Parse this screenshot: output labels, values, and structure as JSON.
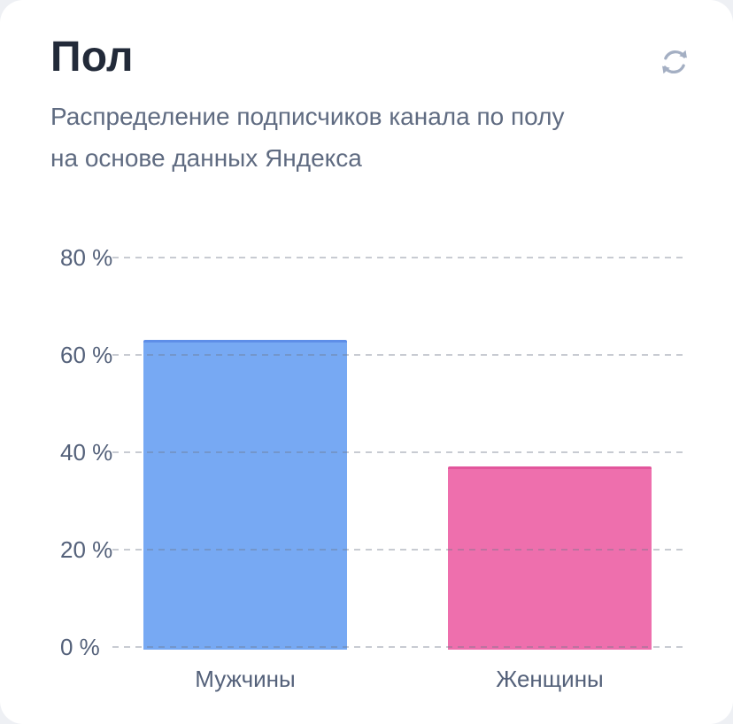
{
  "page": {
    "background": "#eef0f4"
  },
  "card": {
    "title": "Пол",
    "subtitle_lines": [
      "Распределение подписчиков канала по полу",
      "на основе данных Яндекса"
    ],
    "refresh_icon": "refresh-icon",
    "refresh_icon_color": "#a4afc3"
  },
  "chart_data": {
    "type": "bar",
    "title": "Пол",
    "subtitle": "Распределение подписчиков канала по полу на основе данных Яндекса",
    "categories": [
      "Мужчины",
      "Женщины"
    ],
    "values": [
      63,
      37
    ],
    "unit": "%",
    "ylim": [
      0,
      80
    ],
    "yticks": [
      0,
      20,
      40,
      60,
      80
    ],
    "ytick_labels": [
      "0 %",
      "20 %",
      "40 %",
      "60 %",
      "80 %"
    ],
    "grid": "dashed-horizontal",
    "legend": "none",
    "bar_colors": [
      "#77a9f3",
      "#ee6fad"
    ],
    "bar_edge_colors": [
      "#5e8ee8",
      "#e2569c"
    ],
    "tick_color": "#54617a",
    "grid_color": "#cdd1d9",
    "plot_background": "#ffffff"
  }
}
